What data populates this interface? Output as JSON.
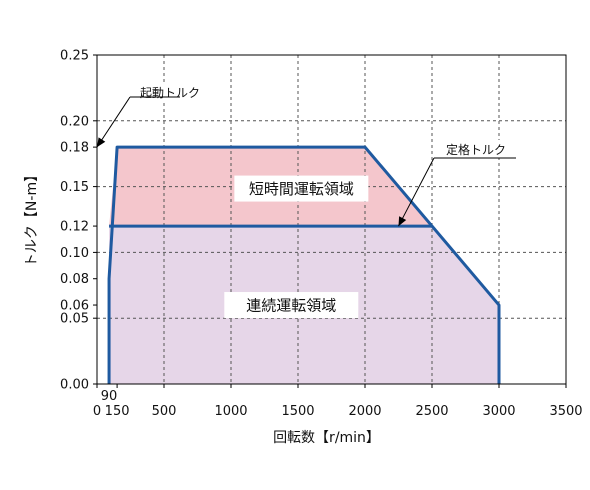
{
  "chart_data": {
    "type": "area",
    "xlabel": "回転数【r/min】",
    "ylabel": "トルク【N-m】",
    "xlim": [
      0,
      3500
    ],
    "ylim": [
      0,
      0.25
    ],
    "x_ticks": [
      {
        "v": 0,
        "label": "0"
      },
      {
        "v": 150,
        "label": "150"
      },
      {
        "v": 500,
        "label": "500"
      },
      {
        "v": 1000,
        "label": "1000"
      },
      {
        "v": 1500,
        "label": "1500"
      },
      {
        "v": 2000,
        "label": "2000"
      },
      {
        "v": 2500,
        "label": "2500"
      },
      {
        "v": 3000,
        "label": "3000"
      },
      {
        "v": 3500,
        "label": "3500"
      }
    ],
    "x_extra_tick": {
      "v": 90,
      "label": "90"
    },
    "y_ticks": [
      {
        "v": 0,
        "label": "0.00"
      },
      {
        "v": 0.05,
        "label": "0.05"
      },
      {
        "v": 0.06,
        "label": "0.06"
      },
      {
        "v": 0.08,
        "label": "0.08"
      },
      {
        "v": 0.1,
        "label": "0.10"
      },
      {
        "v": 0.12,
        "label": "0.12"
      },
      {
        "v": 0.15,
        "label": "0.15"
      },
      {
        "v": 0.18,
        "label": "0.18"
      },
      {
        "v": 0.2,
        "label": "0.20"
      },
      {
        "v": 0.25,
        "label": "0.25"
      }
    ],
    "x_grid": [
      500,
      1000,
      1500,
      2000,
      2500,
      3000
    ],
    "y_grid": [
      0.05,
      0.1,
      0.15,
      0.2
    ],
    "series": [
      {
        "name": "短時間運転領域",
        "x": [
          90,
          150,
          2000,
          2500
        ],
        "y": [
          0.12,
          0.18,
          0.18,
          0.12
        ],
        "fill": "#f4c6cc"
      },
      {
        "name": "連続運転領域",
        "x": [
          90,
          90,
          2500,
          3000,
          3000
        ],
        "y": [
          0,
          0.12,
          0.12,
          0.06,
          0
        ],
        "fill": "#e6d6e8"
      }
    ],
    "boundary": {
      "x": [
        90,
        90,
        150,
        2000,
        3000,
        3000
      ],
      "y": [
        0,
        0.08,
        0.18,
        0.18,
        0.06,
        0
      ]
    },
    "rated_line": {
      "x": [
        90,
        2500
      ],
      "y": [
        0.12,
        0.12
      ]
    },
    "annotations": [
      {
        "text": "起動トルク",
        "target_x": 0,
        "target_y": 0.18
      },
      {
        "text": "定格トルク",
        "target_x": 2250,
        "target_y": 0.12
      }
    ],
    "grid": true,
    "colors": {
      "line": "#1f5aa0",
      "grid": "#555555"
    }
  }
}
